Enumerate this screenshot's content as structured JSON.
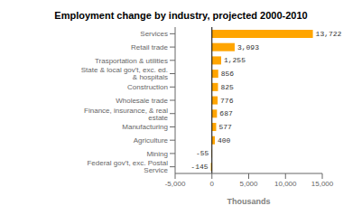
{
  "chart_data": {
    "type": "bar",
    "orientation": "horizontal",
    "title": "Employment change by industry, projected 2000-2010",
    "xlabel": "Thousands",
    "categories": [
      "Federal gov't, exc. Postal Service",
      "Mining",
      "Agriculture",
      "Manufacturing",
      "Finance, insurance, & real estate",
      "Wholesale trade",
      "Construction",
      "State & local gov't, exc. ed. & hospitals",
      "Trasportation & utilities",
      "Retail trade",
      "Services"
    ],
    "values": [
      -145,
      -55,
      400,
      577,
      687,
      776,
      825,
      856,
      1255,
      3093,
      13722
    ],
    "value_labels": [
      "-145",
      "-55",
      "400",
      "577",
      "687",
      "776",
      "825",
      "856",
      "1,255",
      "3,093",
      "13,722"
    ],
    "data_labels": true,
    "color": "#FFA500",
    "xlim": [
      -5000,
      15000
    ],
    "xticks": [
      {
        "value": -5000,
        "label": "-5,000"
      },
      0,
      {
        "value": 5000,
        "label": "5,000"
      },
      {
        "value": 10000,
        "label": "10,000"
      },
      {
        "value": 15000,
        "label": "15,000"
      }
    ],
    "grid": false
  }
}
